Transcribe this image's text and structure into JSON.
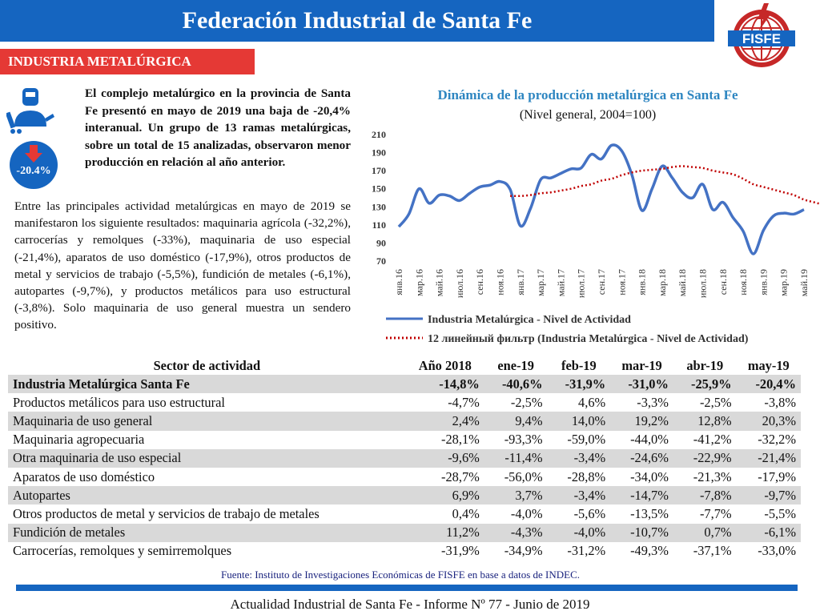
{
  "header": {
    "title": "Federación Industrial de Santa Fe"
  },
  "logo": {
    "text": "FISFE"
  },
  "section_tag": "INDUSTRIA METALÚRGICA",
  "badge": {
    "value": "-20.4%"
  },
  "colors": {
    "brand_blue": "#1565c0",
    "accent_red": "#e53935",
    "series_blue": "#4472c4",
    "trend_red": "#c00000"
  },
  "icons": {
    "worker": "welder-worker-icon",
    "arrow": "arrow-down-icon"
  },
  "intro_text": "El complejo metalúrgico en la provincia de Santa Fe presentó en mayo de 2019 una baja de -20,4% interanual. Un grupo de 13 ramas metalúrgicas, sobre un total de 15 analizadas, observaron menor producción en relación al año anterior.",
  "body_text": "Entre las principales actividad metalúrgicas en mayo de 2019 se manifestaron los siguiente resultados: maquinaria agrícola (-32,2%), carrocerías y remolques (-33%), maquinaria de uso especial (-21,4%), aparatos de uso doméstico (-17,9%), otros productos de metal y servicios de trabajo (-5,5%), fundición de metales (-6,1%), autopartes (-9,7%), y productos metálicos para uso estructural (-3,8%). Solo maquinaria de uso general muestra un sendero positivo.",
  "chart_data": {
    "type": "line",
    "title": "Dinámica de la producción metalúrgica en Santa Fe",
    "subtitle": "(Nivel general, 2004=100)",
    "ylim": [
      70,
      210
    ],
    "yticks": [
      70,
      90,
      110,
      130,
      150,
      170,
      190,
      210
    ],
    "grid": false,
    "legend_position": "bottom",
    "x_labels": [
      "янв.16",
      "мар.16",
      "май.16",
      "июл.16",
      "сен.16",
      "ноя.16",
      "янв.17",
      "мар.17",
      "май.17",
      "июл.17",
      "сен.17",
      "ноя.17",
      "янв.18",
      "мар.18",
      "май.18",
      "июл.18",
      "сен.18",
      "ноя.18",
      "янв.19",
      "мар.19",
      "май.19"
    ],
    "series": [
      {
        "name": "Industria Metalúrgica - Nivel de Actividad",
        "style": "solid",
        "values": [
          108,
          122,
          150,
          134,
          143,
          142,
          137,
          145,
          152,
          154,
          158,
          149,
          109,
          128,
          160,
          162,
          167,
          172,
          173,
          188,
          183,
          198,
          192,
          166,
          126,
          150,
          175,
          162,
          146,
          140,
          155,
          127,
          135,
          118,
          103,
          78,
          104,
          120,
          123,
          122,
          127
        ]
      },
      {
        "name": "12 линейный фильтр (Industria Metalúrgica - Nivel de Actividad)",
        "style": "dotted",
        "start_index": 11,
        "values": [
          142,
          142,
          143,
          145,
          146,
          148,
          150,
          153,
          155,
          159,
          161,
          165,
          168,
          170,
          171,
          172,
          174,
          175,
          174,
          173,
          170,
          168,
          166,
          161,
          155,
          152,
          149,
          146,
          143,
          138,
          135,
          132,
          128,
          125,
          123
        ]
      }
    ]
  },
  "table": {
    "headers": [
      "Sector de actividad",
      "Año 2018",
      "ene-19",
      "feb-19",
      "mar-19",
      "abr-19",
      "may-19"
    ],
    "rows": [
      [
        "Industria Metalúrgica Santa Fe",
        "-14,8%",
        "-40,6%",
        "-31,9%",
        "-31,0%",
        "-25,9%",
        "-20,4%"
      ],
      [
        "Productos metálicos para uso estructural",
        "-4,7%",
        "-2,5%",
        "4,6%",
        "-3,3%",
        "-2,5%",
        "-3,8%"
      ],
      [
        "Maquinaria de uso general",
        "2,4%",
        "9,4%",
        "14,0%",
        "19,2%",
        "12,8%",
        "20,3%"
      ],
      [
        "Maquinaria agropecuaria",
        "-28,1%",
        "-93,3%",
        "-59,0%",
        "-44,0%",
        "-41,2%",
        "-32,2%"
      ],
      [
        "Otra maquinaria de uso especial",
        "-9,6%",
        "-11,4%",
        "-3,4%",
        "-24,6%",
        "-22,9%",
        "-21,4%"
      ],
      [
        "Aparatos de uso doméstico",
        "-28,7%",
        "-56,0%",
        "-28,8%",
        "-34,0%",
        "-21,3%",
        "-17,9%"
      ],
      [
        "Autopartes",
        "6,9%",
        "3,7%",
        "-3,4%",
        "-14,7%",
        "-7,8%",
        "-9,7%"
      ],
      [
        "Otros productos de metal y servicios de trabajo de metales",
        "0,4%",
        "-4,0%",
        "-5,6%",
        "-13,5%",
        "-7,7%",
        "-5,5%"
      ],
      [
        "Fundición de metales",
        "11,2%",
        "-4,3%",
        "-4,0%",
        "-10,7%",
        "0,7%",
        "-6,1%"
      ],
      [
        "Carrocerías, remolques y semirremolques",
        "-31,9%",
        "-34,9%",
        "-31,2%",
        "-49,3%",
        "-37,1%",
        "-33,0%"
      ]
    ]
  },
  "source": "Fuente: Instituto de Investigaciones Económicas de FISFE en base a datos de INDEC.",
  "footer": "Actualidad Industrial de Santa Fe - Informe Nº 77 - Junio de 2019"
}
